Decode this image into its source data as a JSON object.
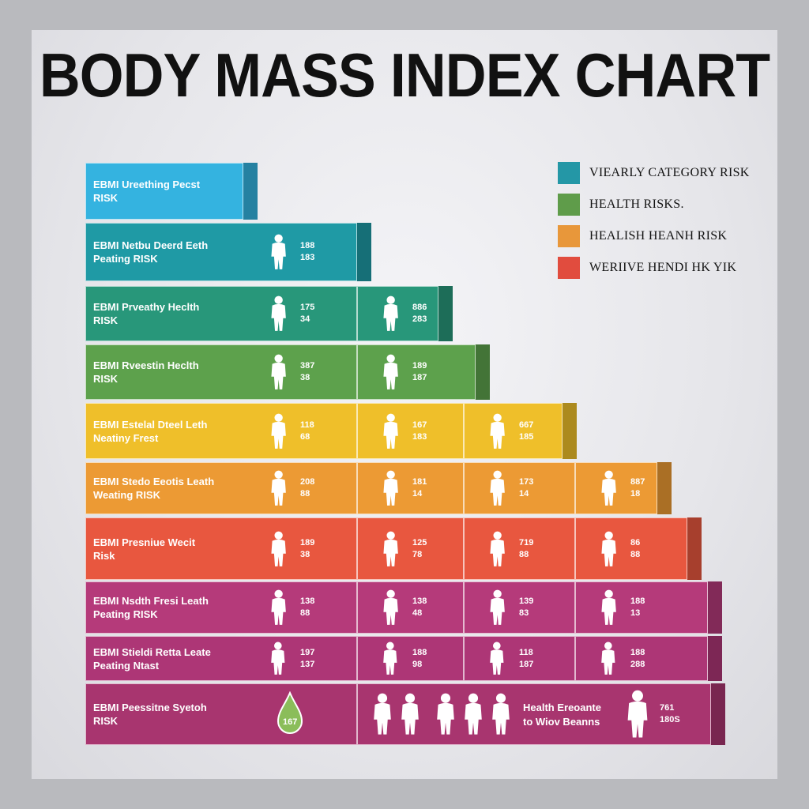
{
  "title": "BODY MASS INDEX CHART",
  "legend": [
    {
      "label": "VIEARLY CATEGORY RISK",
      "color": "#2497a6"
    },
    {
      "label": "HEALTH RISKS.",
      "color": "#5f9c4a"
    },
    {
      "label": "HEALISH HEANH RISK",
      "color": "#e8973a"
    },
    {
      "label": "WERIIVE HENDI HK YIK",
      "color": "#e14c3e"
    }
  ],
  "rows": [
    {
      "label_1": "EBMI Ureething Pecst",
      "label_2": "RISK",
      "color": "#34b3e0",
      "values": []
    },
    {
      "label_1": "EBMI Netbu Deerd Eeth",
      "label_2": "Peating RISK",
      "color": "#1f9aa5",
      "values": [
        [
          "188",
          "183"
        ]
      ]
    },
    {
      "label_1": "EBMI Prveathy Heclth",
      "label_2": "RISK",
      "color": "#28977a",
      "values": [
        [
          "175",
          "34"
        ],
        [
          "886",
          "283"
        ]
      ]
    },
    {
      "label_1": "EBMI Rveestin Heclth",
      "label_2": "RISK",
      "color": "#5da14c",
      "values": [
        [
          "387",
          "38"
        ],
        [
          "189",
          "187"
        ]
      ]
    },
    {
      "label_1": "EBMI Estelal Dteel Leth",
      "label_2": "Neatiny Frest",
      "color": "#efbf2a",
      "values": [
        [
          "118",
          "68"
        ],
        [
          "167",
          "183"
        ],
        [
          "667",
          "185"
        ]
      ]
    },
    {
      "label_1": "EBMI Stedo Eeotis Leath",
      "label_2": "Weating RISK",
      "color": "#ec9a34",
      "values": [
        [
          "208",
          "88"
        ],
        [
          "181",
          "14"
        ],
        [
          "173",
          "14"
        ],
        [
          "887",
          "18"
        ]
      ]
    },
    {
      "label_1": "EBMI Presniue Wecit",
      "label_2": "Risk",
      "color": "#e8573f",
      "values": [
        [
          "189",
          "38"
        ],
        [
          "125",
          "78"
        ],
        [
          "719",
          "88"
        ],
        [
          "86",
          "88"
        ]
      ]
    },
    {
      "label_1": "EBMI Nsdth Fresi Leath",
      "label_2": "Peating RISK",
      "color": "#b53a7a",
      "values": [
        [
          "138",
          "88"
        ],
        [
          "138",
          "48"
        ],
        [
          "139",
          "83"
        ],
        [
          "188",
          "13"
        ]
      ]
    },
    {
      "label_1": "EBMI Stieldi Retta Leate",
      "label_2": "Peating Ntast",
      "color": "#ad3676",
      "values": [
        [
          "197",
          "137"
        ],
        [
          "188",
          "98"
        ],
        [
          "118",
          "187"
        ],
        [
          "188",
          "288"
        ]
      ]
    },
    {
      "label_1": "EBMI Peessitne Syetoh",
      "label_2": "RISK",
      "color": "#a8356f",
      "values": []
    }
  ],
  "last_row": {
    "drop_value": "167",
    "note_1": "Health Ereoante",
    "note_2": "to Wiov Beanns",
    "val_1": "761",
    "val_2": "180S"
  }
}
